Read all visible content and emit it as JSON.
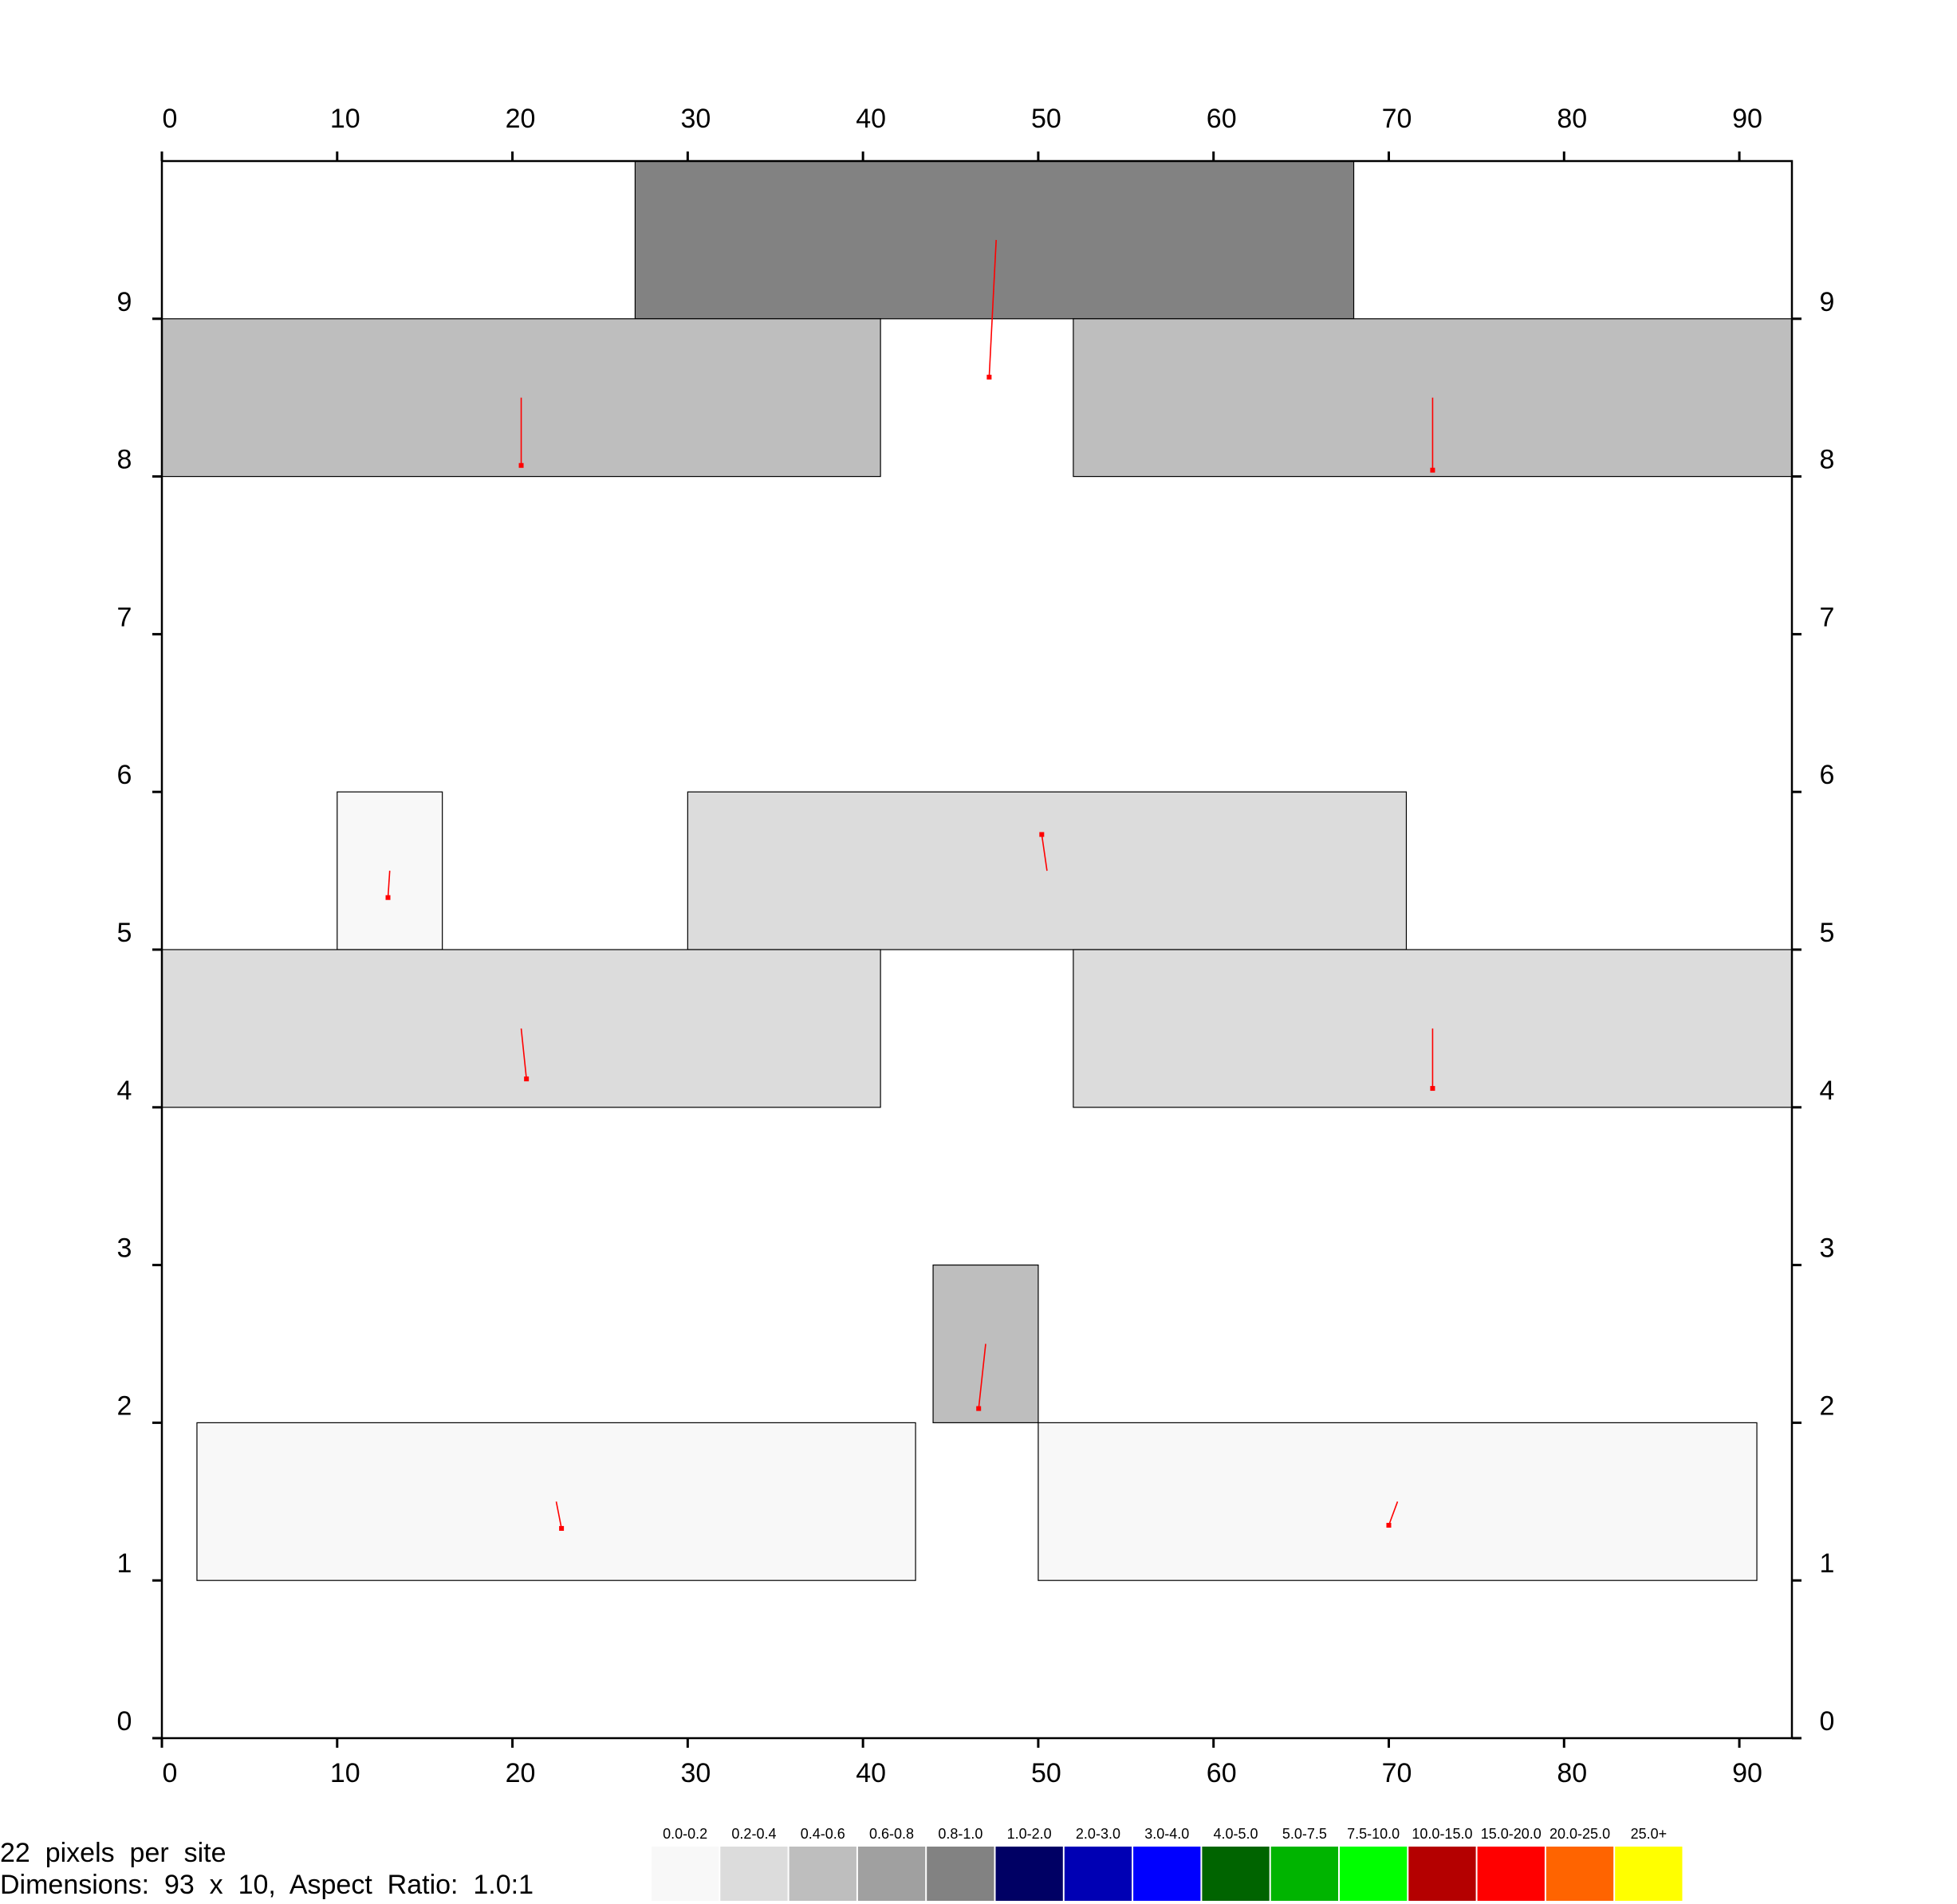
{
  "chart_data": {
    "type": "heatmap",
    "xlim": [
      0,
      93
    ],
    "ylim": [
      0,
      10
    ],
    "x_ticks": [
      "0",
      "10",
      "20",
      "30",
      "40",
      "50",
      "60",
      "70",
      "80",
      "90"
    ],
    "y_ticks": [
      "0",
      "1",
      "2",
      "3",
      "4",
      "5",
      "6",
      "7",
      "8",
      "9"
    ],
    "rects": [
      {
        "x0": 27,
        "x1": 68,
        "y0": 9,
        "y1": 10,
        "bin": "0.8-1.0",
        "fill": "#828282",
        "vx": [
          47.6,
          47.2
        ],
        "vy": [
          9.5,
          8.63
        ]
      },
      {
        "x0": 0,
        "x1": 41,
        "y0": 8,
        "y1": 9,
        "bin": "0.4-0.6",
        "fill": "#bebebe",
        "vx": [
          20.5,
          20.5
        ],
        "vy": [
          8.5,
          8.07
        ]
      },
      {
        "x0": 52,
        "x1": 93,
        "y0": 8,
        "y1": 9,
        "bin": "0.4-0.6",
        "fill": "#bebebe",
        "vx": [
          72.5,
          72.5
        ],
        "vy": [
          8.5,
          8.04
        ]
      },
      {
        "x0": 10,
        "x1": 16,
        "y0": 5,
        "y1": 6,
        "bin": "0.0-0.2",
        "fill": "#f8f8f8",
        "vx": [
          13.0,
          12.9
        ],
        "vy": [
          5.5,
          5.33
        ]
      },
      {
        "x0": 30,
        "x1": 71,
        "y0": 5,
        "y1": 6,
        "bin": "0.2-0.4",
        "fill": "#dcdcdc",
        "vx": [
          50.5,
          50.2
        ],
        "vy": [
          5.5,
          5.73
        ]
      },
      {
        "x0": 0,
        "x1": 41,
        "y0": 4,
        "y1": 5,
        "bin": "0.2-0.4",
        "fill": "#dcdcdc",
        "vx": [
          20.5,
          20.8
        ],
        "vy": [
          4.5,
          4.18
        ]
      },
      {
        "x0": 52,
        "x1": 93,
        "y0": 4,
        "y1": 5,
        "bin": "0.2-0.4",
        "fill": "#dcdcdc",
        "vx": [
          72.5,
          72.5
        ],
        "vy": [
          4.5,
          4.12
        ]
      },
      {
        "x0": 44,
        "x1": 50,
        "y0": 2,
        "y1": 3,
        "bin": "0.4-0.6",
        "fill": "#bebebe",
        "vx": [
          47.0,
          46.6
        ],
        "vy": [
          2.5,
          2.09
        ]
      },
      {
        "x0": 2,
        "x1": 43,
        "y0": 1,
        "y1": 2,
        "bin": "0.0-0.2",
        "fill": "#f8f8f8",
        "vx": [
          22.5,
          22.8
        ],
        "vy": [
          1.5,
          1.33
        ]
      },
      {
        "x0": 50,
        "x1": 91,
        "y0": 1,
        "y1": 2,
        "bin": "0.0-0.2",
        "fill": "#f8f8f8",
        "vx": [
          70.5,
          70.0
        ],
        "vy": [
          1.5,
          1.35
        ]
      }
    ],
    "legend": [
      {
        "label": "0.0-0.2",
        "color": "#f8f8f8"
      },
      {
        "label": "0.2-0.4",
        "color": "#dcdcdc"
      },
      {
        "label": "0.4-0.6",
        "color": "#bebebe"
      },
      {
        "label": "0.6-0.8",
        "color": "#a0a0a0"
      },
      {
        "label": "0.8-1.0",
        "color": "#828282"
      },
      {
        "label": "1.0-2.0",
        "color": "#000064"
      },
      {
        "label": "2.0-3.0",
        "color": "#0000b4"
      },
      {
        "label": "3.0-4.0",
        "color": "#0000ff"
      },
      {
        "label": "4.0-5.0",
        "color": "#006400"
      },
      {
        "label": "5.0-7.5",
        "color": "#00b400"
      },
      {
        "label": "7.5-10.0",
        "color": "#00ff00"
      },
      {
        "label": "10.0-15.0",
        "color": "#b40000"
      },
      {
        "label": "15.0-20.0",
        "color": "#ff0000"
      },
      {
        "label": "20.0-25.0",
        "color": "#ff6400"
      },
      {
        "label": "25.0+",
        "color": "#ffff00"
      }
    ],
    "vector_color": "#ff0000",
    "legend_placement": "bottom"
  },
  "info": {
    "line1": "22  pixels  per  site",
    "line2": "Dimensions:  93  x  10,  Aspect  Ratio:  1.0:1"
  }
}
